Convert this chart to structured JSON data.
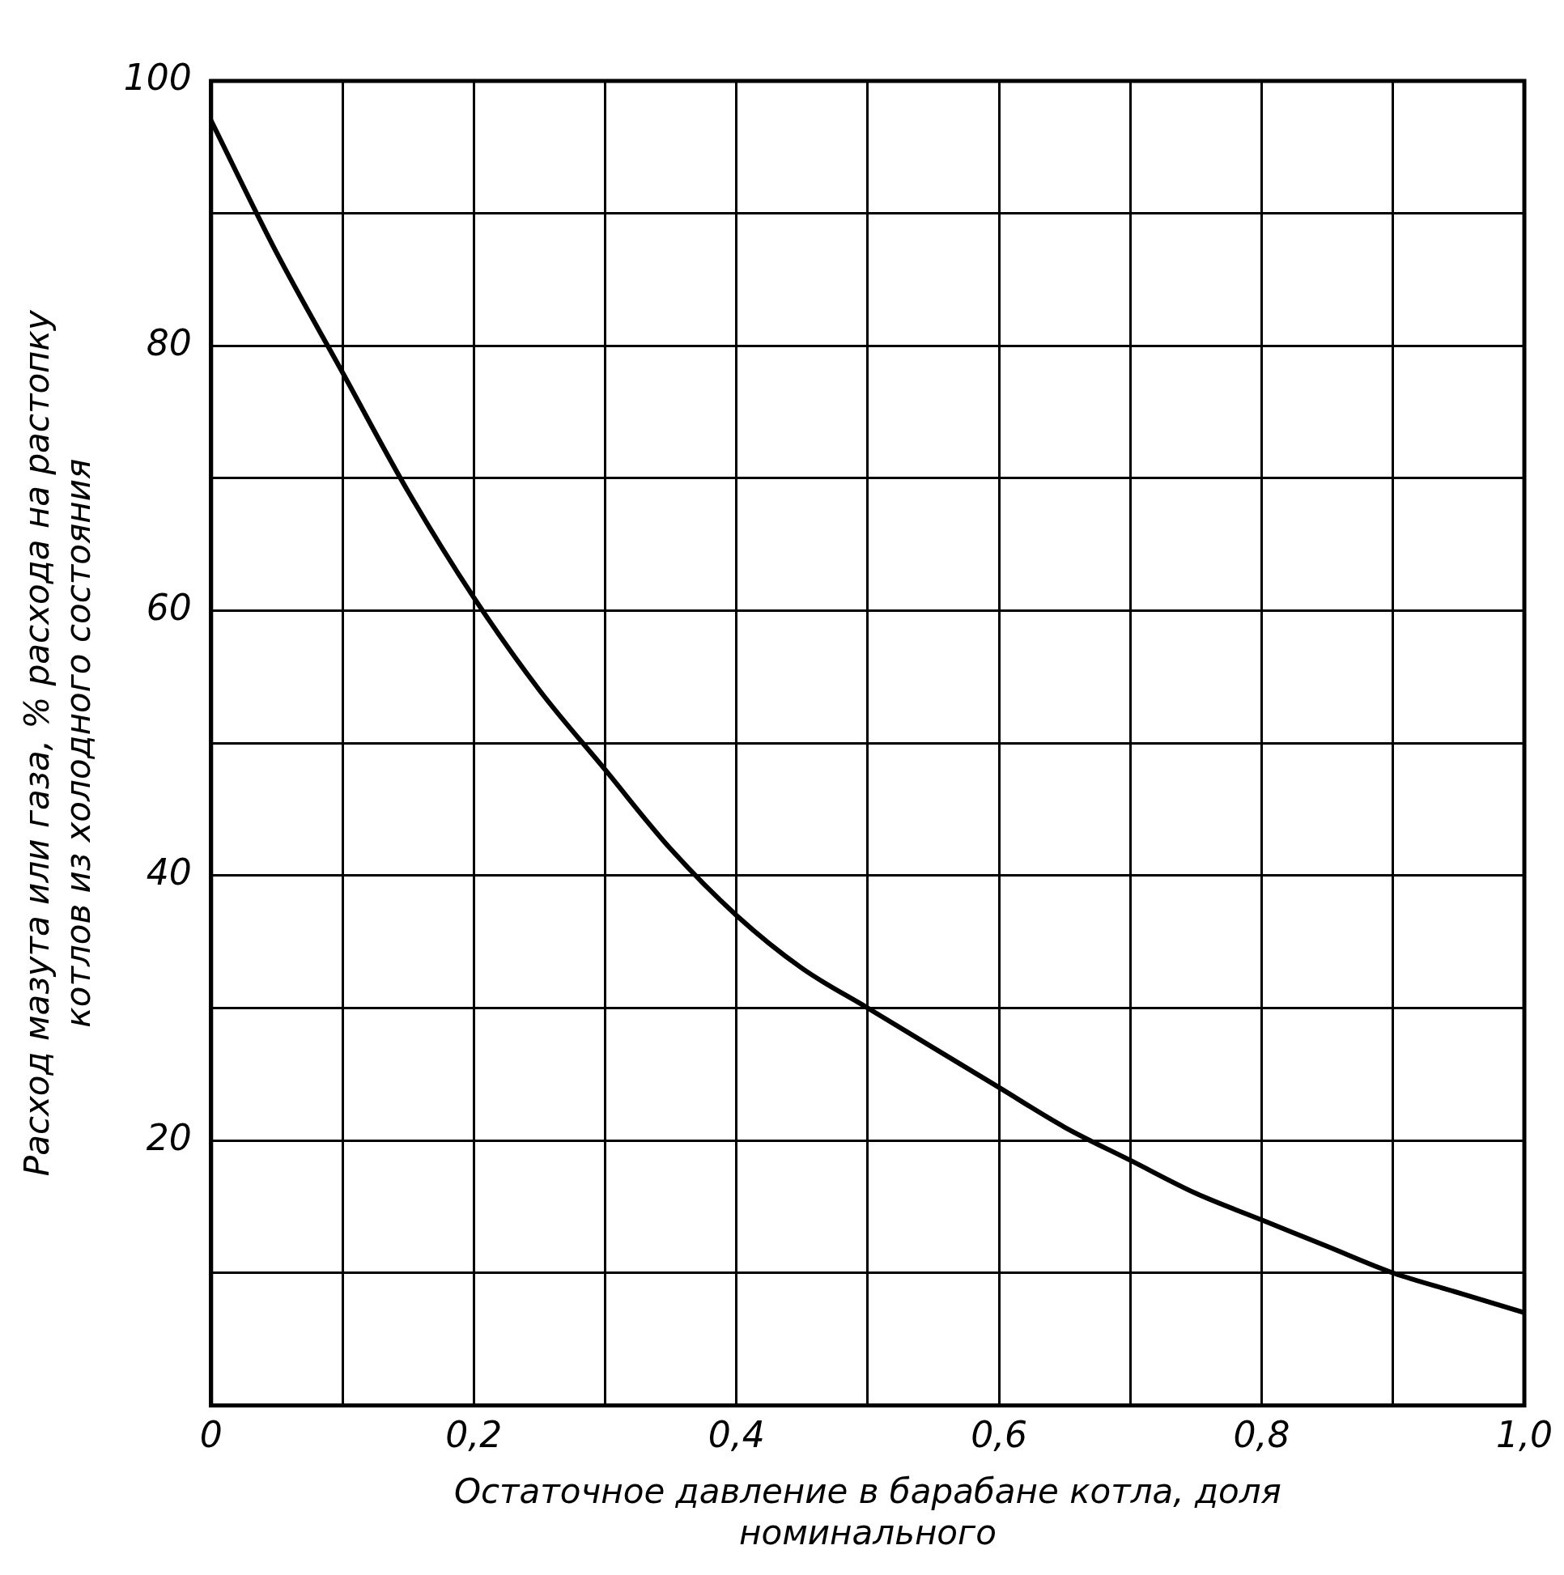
{
  "chart_data": {
    "type": "line",
    "xlabel": [
      "Остаточное давление в барабане котла, доля",
      "номинального"
    ],
    "ylabel": [
      "Расход мазута или газа, % расхода на растопку",
      "котлов из холодного состояния"
    ],
    "x": [
      0,
      0.05,
      0.1,
      0.15,
      0.2,
      0.25,
      0.3,
      0.35,
      0.4,
      0.45,
      0.5,
      0.55,
      0.6,
      0.65,
      0.7,
      0.75,
      0.8,
      0.85,
      0.9,
      0.95,
      1.0
    ],
    "series": [
      {
        "color": "#000000",
        "values": [
          97,
          87,
          78,
          69,
          61,
          54,
          48,
          42,
          37,
          33,
          30,
          27,
          24,
          21,
          18.5,
          16,
          14,
          12,
          10,
          8.5,
          7
        ]
      }
    ],
    "xlim": [
      0,
      1
    ],
    "ylim": [
      0,
      100
    ],
    "xticks": [
      {
        "value": 0,
        "label": "0"
      },
      {
        "value": 0.1,
        "label": null
      },
      {
        "value": 0.2,
        "label": "0,2"
      },
      {
        "value": 0.3,
        "label": null
      },
      {
        "value": 0.4,
        "label": "0,4"
      },
      {
        "value": 0.5,
        "label": null
      },
      {
        "value": 0.6,
        "label": "0,6"
      },
      {
        "value": 0.7,
        "label": null
      },
      {
        "value": 0.8,
        "label": "0,8"
      },
      {
        "value": 0.9,
        "label": null
      },
      {
        "value": 1,
        "label": "1,0"
      }
    ],
    "yticks": [
      {
        "value": 0,
        "label": null
      },
      {
        "value": 10,
        "label": null
      },
      20,
      {
        "value": 30,
        "label": null
      },
      40,
      {
        "value": 50,
        "label": null
      },
      60,
      {
        "value": 70,
        "label": null
      },
      80,
      {
        "value": 90,
        "label": null
      },
      100
    ],
    "grid": true,
    "legend": false,
    "marker": "none",
    "line_style": "solid"
  }
}
